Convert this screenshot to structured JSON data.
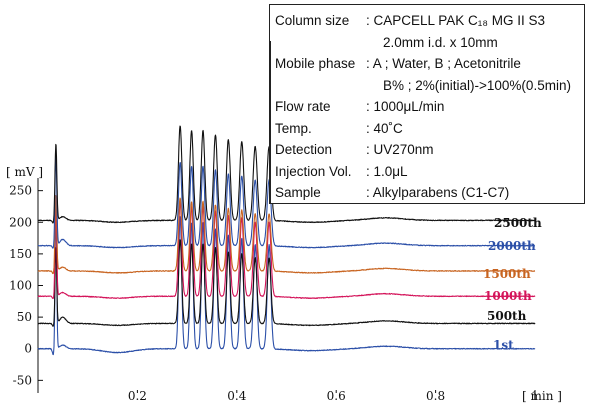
{
  "info": [
    {
      "key": "Column size",
      "value": ": CAPCELL PAK C₁₈ MG II S3"
    },
    {
      "key": "",
      "value": "2.0mm i.d. x 10mm",
      "cont": true
    },
    {
      "key": "Mobile phase",
      "value": ": A ; Water, B ; Acetonitrile"
    },
    {
      "key": "",
      "value": "B% ; 2%(initial)->100%(0.5min)",
      "cont": true
    },
    {
      "key": "Flow rate",
      "value": ": 1000μL/min"
    },
    {
      "key": "Temp.",
      "value": ": 40˚C"
    },
    {
      "key": "Detection",
      "value": ": UV270nm"
    },
    {
      "key": "Injection Vol.",
      "value": ": 1.0μL"
    },
    {
      "key": "Sample",
      "value": ": Alkylparabens (C1-C7)"
    }
  ],
  "chart_data": {
    "type": "line",
    "xlabel": "[ min ]",
    "ylabel": "[ mV ]",
    "xlim": [
      0,
      1.0
    ],
    "ylim": [
      -70,
      270
    ],
    "x_ticks": [
      0.2,
      0.4,
      0.6,
      0.8,
      1
    ],
    "x_tick_labels": [
      "0.2",
      "0.4",
      "0.6",
      "0.8",
      "1"
    ],
    "y_ticks": [
      -50,
      0,
      50,
      100,
      150,
      200,
      250
    ],
    "peak_times": [
      0.036,
      0.286,
      0.309,
      0.332,
      0.357,
      0.383,
      0.41,
      0.437,
      0.465
    ],
    "series": [
      {
        "name": "1st",
        "baseline": 0,
        "color": "#2b4fa8"
      },
      {
        "name": "500th",
        "baseline": 40,
        "color": "#111111"
      },
      {
        "name": "1000th",
        "baseline": 83,
        "color": "#d4145a"
      },
      {
        "name": "1500th",
        "baseline": 123,
        "color": "#c86420"
      },
      {
        "name": "2000th",
        "baseline": 163,
        "color": "#2b4fa8"
      },
      {
        "name": "2500th",
        "baseline": 203,
        "color": "#111111"
      }
    ]
  }
}
